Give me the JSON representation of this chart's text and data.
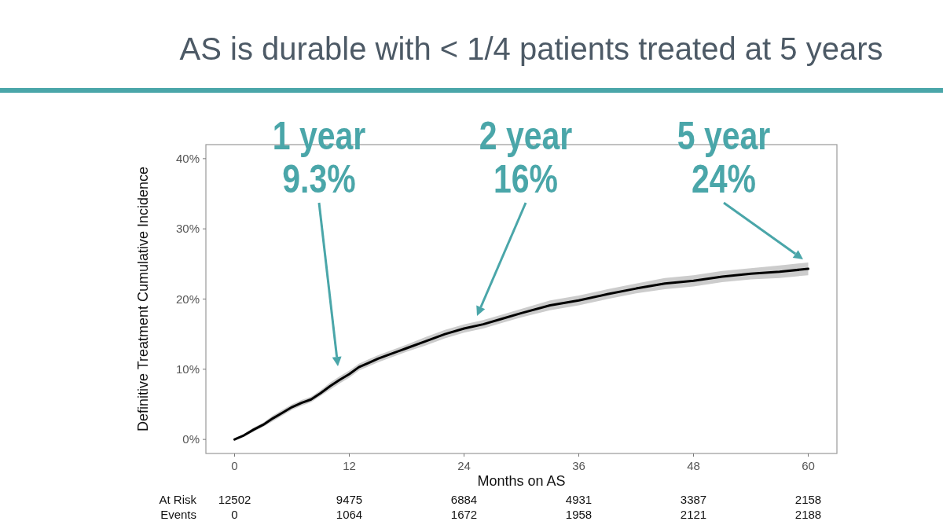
{
  "chart_data": {
    "type": "line",
    "title": "AS is durable with < 1/4 patients treated at 5 years",
    "xlabel": "Months on AS",
    "ylabel": "Definitive Treatment Cumulative Incidence",
    "xlim": [
      -3,
      63
    ],
    "xticks": [
      0,
      12,
      24,
      36,
      48,
      60
    ],
    "ylim": [
      -2,
      42
    ],
    "yticks": [
      {
        "value": 0,
        "label": "0%"
      },
      {
        "value": 10,
        "label": "10%"
      },
      {
        "value": 20,
        "label": "20%"
      },
      {
        "value": 30,
        "label": "30%"
      },
      {
        "value": 40,
        "label": "40%"
      }
    ],
    "grid": false,
    "marker": "none",
    "line_style": "solid",
    "series": [
      {
        "color": "#000000",
        "x": [
          0,
          1,
          2,
          3,
          4,
          5,
          6,
          7,
          8,
          9,
          10,
          11,
          12,
          13,
          14,
          15,
          16,
          18,
          20,
          22,
          24,
          26,
          28,
          30,
          33,
          36,
          39,
          42,
          45,
          48,
          51,
          54,
          57,
          60
        ],
        "values": [
          0,
          0.6,
          1.4,
          2.1,
          3.0,
          3.8,
          4.6,
          5.2,
          5.7,
          6.6,
          7.6,
          8.5,
          9.3,
          10.3,
          10.9,
          11.5,
          12.0,
          13.0,
          14.0,
          15.0,
          15.8,
          16.4,
          17.2,
          18.0,
          19.1,
          19.8,
          20.7,
          21.5,
          22.2,
          22.6,
          23.2,
          23.6,
          23.9,
          24.3
        ],
        "lower": [
          0,
          0.4,
          1.1,
          1.8,
          2.6,
          3.4,
          4.2,
          4.8,
          5.3,
          6.2,
          7.1,
          8.0,
          8.8,
          9.8,
          10.4,
          11.0,
          11.5,
          12.5,
          13.4,
          14.4,
          15.2,
          15.8,
          16.6,
          17.4,
          18.4,
          19.1,
          20.0,
          20.8,
          21.4,
          21.8,
          22.4,
          22.8,
          23.0,
          23.4
        ],
        "upper": [
          0,
          0.8,
          1.7,
          2.4,
          3.4,
          4.2,
          5.0,
          5.6,
          6.1,
          7.0,
          8.1,
          9.0,
          9.8,
          10.8,
          11.4,
          12.0,
          12.5,
          13.5,
          14.6,
          15.6,
          16.4,
          17.0,
          17.8,
          18.6,
          19.8,
          20.5,
          21.4,
          22.2,
          23.0,
          23.4,
          24.0,
          24.4,
          24.8,
          25.2
        ]
      }
    ],
    "annotations": [
      "1 year\n9.3%",
      "2 year\n16%",
      "5 year\n24%",
      "At Risk",
      "12502",
      "9475",
      "6884",
      "4931",
      "3387",
      "2158",
      "Events",
      "0",
      "1064",
      "1672",
      "1958",
      "2121",
      "2188"
    ]
  }
}
